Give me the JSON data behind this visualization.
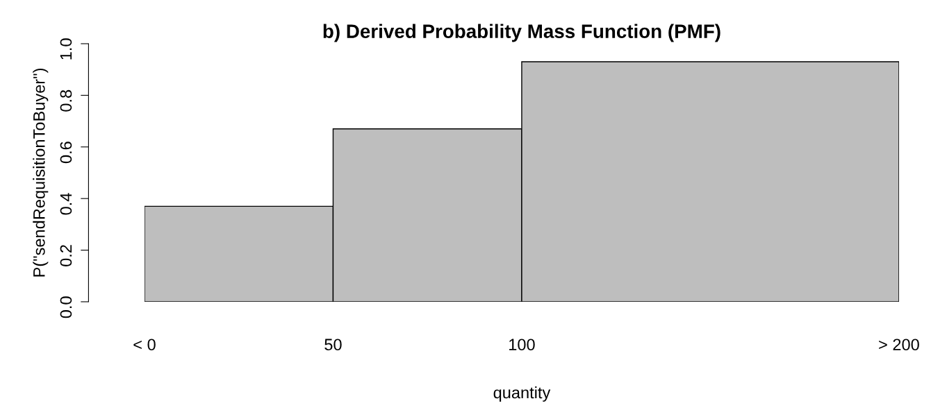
{
  "chart_data": {
    "type": "histogram",
    "title": "b) Derived Probability Mass Function (PMF)",
    "xlabel": "quantity",
    "ylabel": "P(\"sendRequisitionToBuyer\")",
    "bins": [
      0,
      50,
      100,
      200
    ],
    "values": [
      0.37,
      0.67,
      0.93
    ],
    "color": "#bebebe",
    "xlim": [
      0,
      200
    ],
    "xticks": [
      {
        "value": 0,
        "label": "< 0"
      },
      50,
      100,
      {
        "value": 200,
        "label": "> 200"
      }
    ],
    "ylim": [
      0,
      1
    ],
    "yticks": [
      {
        "value": 0,
        "label": "0.0"
      },
      0.2,
      0.4,
      0.6,
      0.8,
      {
        "value": 1,
        "label": "1.0"
      }
    ],
    "grid": false
  }
}
